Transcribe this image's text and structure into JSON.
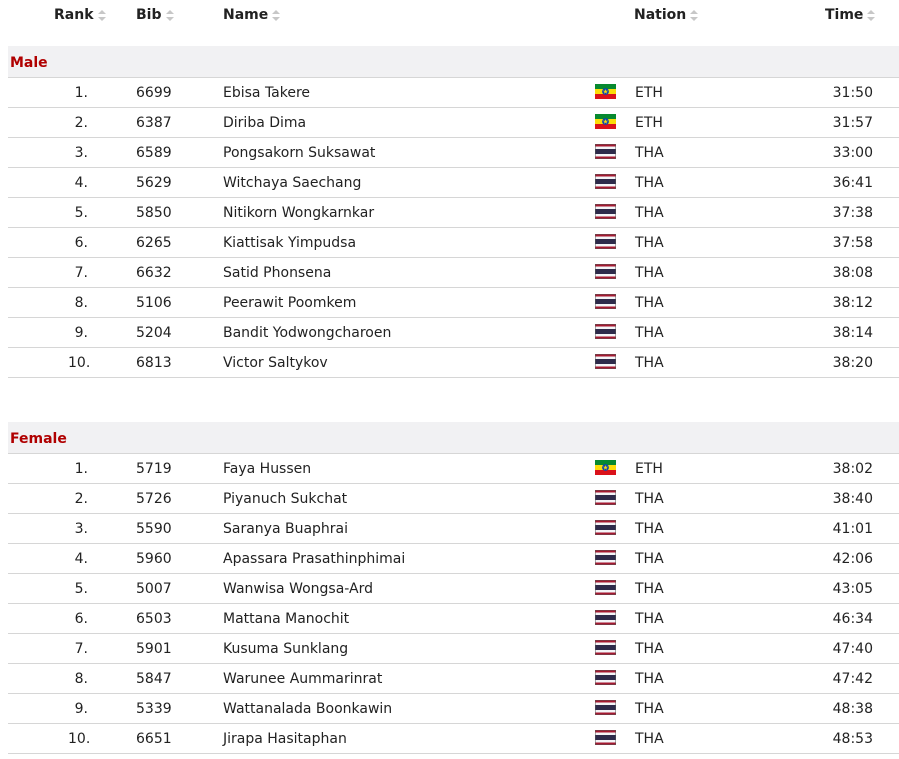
{
  "columns": {
    "rank": "Rank",
    "bib": "Bib",
    "name": "Name",
    "nation": "Nation",
    "time": "Time"
  },
  "sections": [
    {
      "title": "Male",
      "rows": [
        {
          "rank": "1.",
          "bib": "6699",
          "name": "Ebisa Takere",
          "flag": "eth-flag",
          "nation": "ETH",
          "time": "31:50"
        },
        {
          "rank": "2.",
          "bib": "6387",
          "name": "Diriba Dima",
          "flag": "eth-flag",
          "nation": "ETH",
          "time": "31:57"
        },
        {
          "rank": "3.",
          "bib": "6589",
          "name": "Pongsakorn Suksawat",
          "flag": "tha-flag",
          "nation": "THA",
          "time": "33:00"
        },
        {
          "rank": "4.",
          "bib": "5629",
          "name": "Witchaya Saechang",
          "flag": "tha-flag",
          "nation": "THA",
          "time": "36:41"
        },
        {
          "rank": "5.",
          "bib": "5850",
          "name": "Nitikorn Wongkarnkar",
          "flag": "tha-flag",
          "nation": "THA",
          "time": "37:38"
        },
        {
          "rank": "6.",
          "bib": "6265",
          "name": "Kiattisak Yimpudsa",
          "flag": "tha-flag",
          "nation": "THA",
          "time": "37:58"
        },
        {
          "rank": "7.",
          "bib": "6632",
          "name": "Satid Phonsena",
          "flag": "tha-flag",
          "nation": "THA",
          "time": "38:08"
        },
        {
          "rank": "8.",
          "bib": "5106",
          "name": "Peerawit Poomkem",
          "flag": "tha-flag",
          "nation": "THA",
          "time": "38:12"
        },
        {
          "rank": "9.",
          "bib": "5204",
          "name": "Bandit Yodwongcharoen",
          "flag": "tha-flag",
          "nation": "THA",
          "time": "38:14"
        },
        {
          "rank": "10.",
          "bib": "6813",
          "name": "Victor Saltykov",
          "flag": "tha-flag",
          "nation": "THA",
          "time": "38:20"
        }
      ]
    },
    {
      "title": "Female",
      "rows": [
        {
          "rank": "1.",
          "bib": "5719",
          "name": "Faya Hussen",
          "flag": "eth-flag",
          "nation": "ETH",
          "time": "38:02"
        },
        {
          "rank": "2.",
          "bib": "5726",
          "name": "Piyanuch Sukchat",
          "flag": "tha-flag",
          "nation": "THA",
          "time": "38:40"
        },
        {
          "rank": "3.",
          "bib": "5590",
          "name": "Saranya Buaphrai",
          "flag": "tha-flag",
          "nation": "THA",
          "time": "41:01"
        },
        {
          "rank": "4.",
          "bib": "5960",
          "name": "Apassara Prasathinphimai",
          "flag": "tha-flag",
          "nation": "THA",
          "time": "42:06"
        },
        {
          "rank": "5.",
          "bib": "5007",
          "name": "Wanwisa Wongsa-Ard",
          "flag": "tha-flag",
          "nation": "THA",
          "time": "43:05"
        },
        {
          "rank": "6.",
          "bib": "6503",
          "name": "Mattana Manochit",
          "flag": "tha-flag",
          "nation": "THA",
          "time": "46:34"
        },
        {
          "rank": "7.",
          "bib": "5901",
          "name": "Kusuma Sunklang",
          "flag": "tha-flag",
          "nation": "THA",
          "time": "47:40"
        },
        {
          "rank": "8.",
          "bib": "5847",
          "name": "Warunee Aummarinrat",
          "flag": "tha-flag",
          "nation": "THA",
          "time": "47:42"
        },
        {
          "rank": "9.",
          "bib": "5339",
          "name": "Wattanalada Boonkawin",
          "flag": "tha-flag",
          "nation": "THA",
          "time": "48:38"
        },
        {
          "rank": "10.",
          "bib": "6651",
          "name": "Jirapa Hasitaphan",
          "flag": "tha-flag",
          "nation": "THA",
          "time": "48:53"
        }
      ]
    }
  ],
  "colors": {
    "section_title": "#b00000",
    "section_bg": "#f1f1f3",
    "row_border": "#d6d6d6",
    "eth_green": "#078930",
    "eth_yellow": "#fcdd09",
    "eth_red": "#da121a",
    "eth_blue": "#0f47af",
    "tha_red": "#a51931",
    "tha_white": "#f4f5f8",
    "tha_blue": "#2d2a4a"
  }
}
